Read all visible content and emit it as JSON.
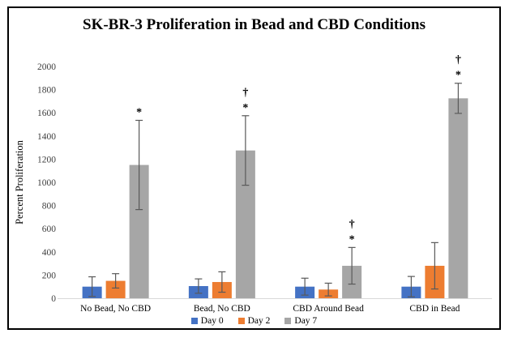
{
  "title": "SK-BR-3 Proliferation in Bead and CBD Conditions",
  "chart_data": {
    "type": "bar",
    "title": "SK-BR-3 Proliferation in Bead and CBD Conditions",
    "xlabel": "",
    "ylabel": "Percent Proliferation",
    "ylim": [
      0,
      2000
    ],
    "yticks": [
      0,
      200,
      400,
      600,
      800,
      1000,
      1200,
      1400,
      1600,
      1800,
      2000
    ],
    "grid": false,
    "legend_position": "bottom",
    "categories": [
      "No Bead, No CBD",
      "Bead, No CBD",
      "CBD Around Bead",
      "CBD in Bead"
    ],
    "series": [
      {
        "name": "Day 0",
        "color": "#4472C4",
        "values": [
          100,
          105,
          100,
          100
        ],
        "errors": [
          85,
          62,
          73,
          88
        ]
      },
      {
        "name": "Day 2",
        "color": "#ED7D31",
        "values": [
          150,
          140,
          75,
          280
        ],
        "errors": [
          62,
          88,
          55,
          200
        ]
      },
      {
        "name": "Day 7",
        "color": "#A6A6A6",
        "values": [
          1150,
          1275,
          280,
          1725
        ],
        "errors": [
          385,
          300,
          158,
          130
        ]
      }
    ],
    "annotations": [
      {
        "category": 0,
        "series": 2,
        "symbols": [
          "*"
        ]
      },
      {
        "category": 1,
        "series": 2,
        "symbols": [
          "†",
          "*"
        ]
      },
      {
        "category": 2,
        "series": 2,
        "symbols": [
          "†",
          "*"
        ]
      },
      {
        "category": 3,
        "series": 2,
        "symbols": [
          "†",
          "*"
        ]
      }
    ]
  },
  "colors": {
    "error_bar": "#595959",
    "axis_line": "#D9D9D9",
    "tick_text": "#404040",
    "frame_border": "#000000"
  }
}
